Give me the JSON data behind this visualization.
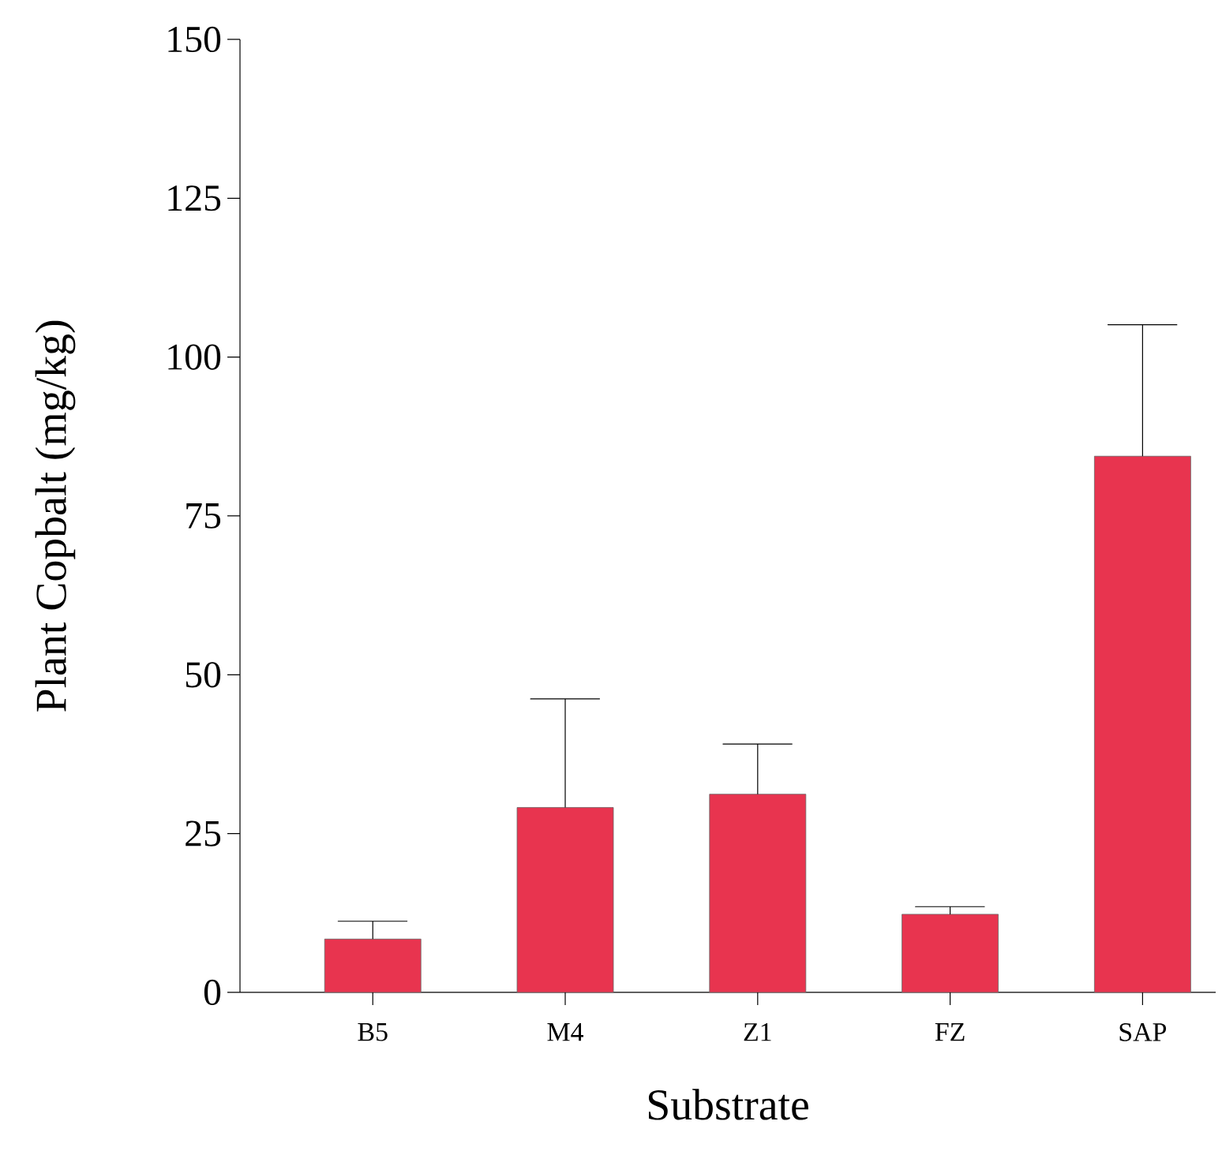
{
  "chart_data": {
    "type": "bar",
    "xlabel": "Substrate",
    "ylabel": "Plant Copbalt (mg/kg)",
    "categories": [
      "B5",
      "M4",
      "Z1",
      "FZ",
      "SAP"
    ],
    "values": [
      8.4,
      29.1,
      31.2,
      12.3,
      84.4
    ],
    "errors": [
      [
        8.4,
        11.2
      ],
      [
        29.1,
        46.2
      ],
      [
        31.2,
        39.1
      ],
      [
        12.3,
        13.5
      ],
      [
        84.4,
        105.1
      ]
    ],
    "color": "#e8344f",
    "ylim": [
      0,
      150
    ],
    "yticks": [
      0,
      25,
      50,
      75,
      100,
      125,
      150
    ],
    "grid": false
  }
}
